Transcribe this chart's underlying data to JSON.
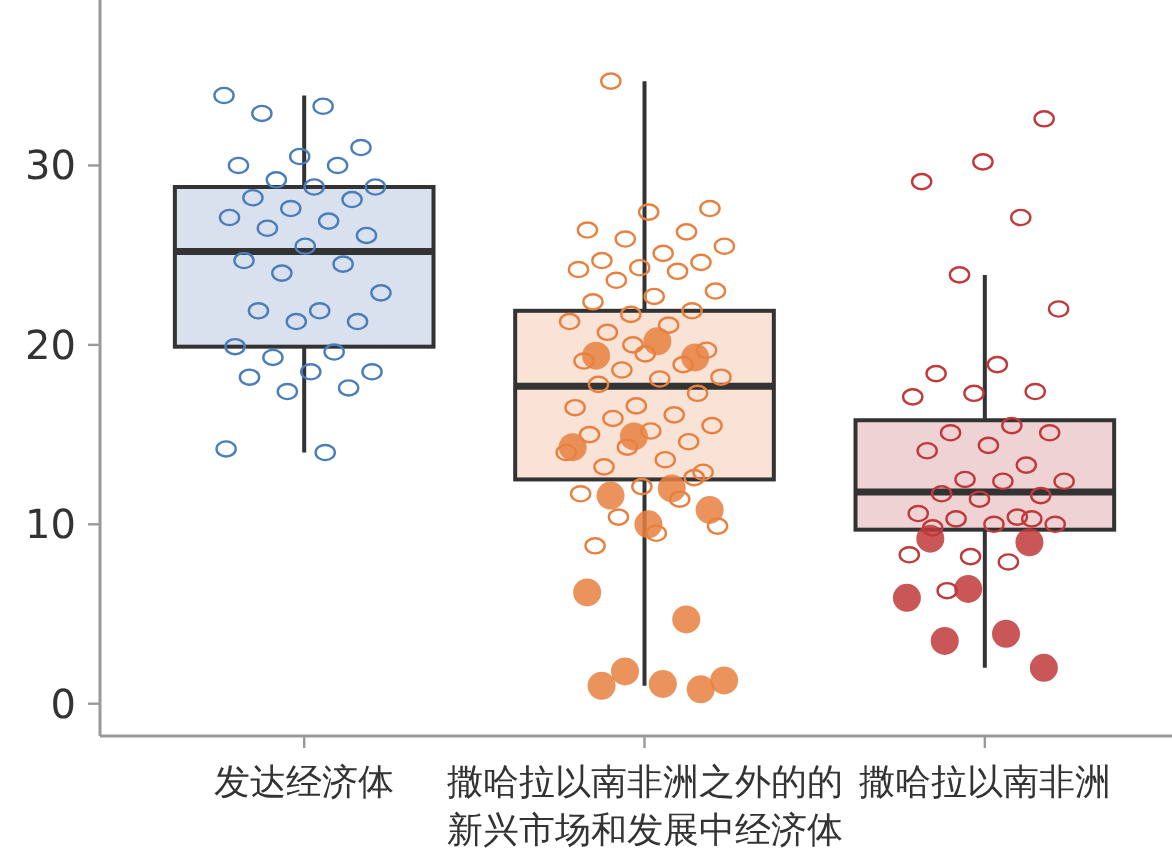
{
  "chart_data": {
    "type": "box",
    "categories": [
      "发达经济体",
      "撒哈拉以南非洲之外的的新兴市场和发展中经济体",
      "撒哈拉以南非洲"
    ],
    "boxes": [
      {
        "low": 14.0,
        "q1": 19.9,
        "median": 25.2,
        "q3": 28.8,
        "high": 33.9
      },
      {
        "low": 1.0,
        "q1": 12.5,
        "median": 17.7,
        "q3": 21.9,
        "high": 34.7
      },
      {
        "low": 2.0,
        "q1": 9.7,
        "median": 11.8,
        "q3": 15.8,
        "high": 23.9
      }
    ],
    "colors": [
      "#d9e1ee",
      "#f9e2d6",
      "#efd3d4"
    ],
    "ylim": [
      -1.8,
      39
    ],
    "yticks": [
      0,
      10,
      20,
      30
    ],
    "marker": "circle",
    "series": [
      {
        "type": "scatter",
        "color": "#4a7ebb",
        "x": [
          "发达经济体",
          "发达经济体",
          "发达经济体",
          "发达经济体",
          "发达经济体",
          "发达经济体",
          "发达经济体",
          "发达经济体",
          "发达经济体",
          "发达经济体",
          "发达经济体",
          "发达经济体",
          "发达经济体",
          "发达经济体",
          "发达经济体",
          "发达经济体",
          "发达经济体",
          "发达经济体",
          "发达经济体",
          "发达经济体",
          "发达经济体",
          "发达经济体",
          "发达经济体",
          "发达经济体",
          "发达经济体",
          "发达经济体",
          "发达经济体",
          "发达经济体",
          "发达经济体",
          "发达经济体",
          "发达经济体",
          "发达经济体",
          "发达经济体",
          "发达经济体",
          "发达经济体",
          "发达经济体"
        ],
        "values": [
          33.9,
          33.3,
          32.9,
          31.0,
          30.5,
          30.0,
          30.0,
          29.2,
          28.8,
          28.8,
          28.2,
          28.1,
          27.6,
          27.1,
          26.9,
          26.5,
          26.1,
          25.5,
          24.7,
          24.5,
          24.0,
          22.9,
          21.9,
          21.9,
          21.3,
          21.3,
          19.9,
          19.6,
          19.3,
          18.5,
          18.5,
          18.2,
          17.6,
          17.4,
          14.2,
          14.0
        ]
      },
      {
        "type": "scatter",
        "color": "#e8803f",
        "x": [
          "撒哈拉以南非洲之外的的新兴市场和发展中经济体",
          "撒哈拉以南非洲之外的的新兴市场和发展中经济体",
          "撒哈拉以南非洲之外的的新兴市场和发展中经济体",
          "撒哈拉以南非洲之外的的新兴市场和发展中经济体",
          "撒哈拉以南非洲之外的的新兴市场和发展中经济体",
          "撒哈拉以南非洲之外的的新兴市场和发展中经济体",
          "撒哈拉以南非洲之外的的新兴市场和发展中经济体",
          "撒哈拉以南非洲之外的的新兴市场和发展中经济体",
          "撒哈拉以南非洲之外的的新兴市场和发展中经济体",
          "撒哈拉以南非洲之外的的新兴市场和发展中经济体",
          "撒哈拉以南非洲之外的的新兴市场和发展中经济体",
          "撒哈拉以南非洲之外的的新兴市场和发展中经济体",
          "撒哈拉以南非洲之外的的新兴市场和发展中经济体",
          "撒哈拉以南非洲之外的的新兴市场和发展中经济体",
          "撒哈拉以南非洲之外的的新兴市场和发展中经济体",
          "撒哈拉以南非洲之外的的新兴市场和发展中经济体",
          "撒哈拉以南非洲之外的的新兴市场和发展中经济体",
          "撒哈拉以南非洲之外的的新兴市场和发展中经济体",
          "撒哈拉以南非洲之外的的新兴市场和发展中经济体",
          "撒哈拉以南非洲之外的的新兴市场和发展中经济体",
          "撒哈拉以南非洲之外的的新兴市场和发展中经济体",
          "撒哈拉以南非洲之外的的新兴市场和发展中经济体",
          "撒哈拉以南非洲之外的的新兴市场和发展中经济体",
          "撒哈拉以南非洲之外的的新兴市场和发展中经济体",
          "撒哈拉以南非洲之外的的新兴市场和发展中经济体",
          "撒哈拉以南非洲之外的的新兴市场和发展中经济体",
          "撒哈拉以南非洲之外的的新兴市场和发展中经济体",
          "撒哈拉以南非洲之外的的新兴市场和发展中经济体",
          "撒哈拉以南非洲之外的的新兴市场和发展中经济体",
          "撒哈拉以南非洲之外的的新兴市场和发展中经济体",
          "撒哈拉以南非洲之外的的新兴市场和发展中经济体",
          "撒哈拉以南非洲之外的的新兴市场和发展中经济体",
          "撒哈拉以南非洲之外的的新兴市场和发展中经济体",
          "撒哈拉以南非洲之外的的新兴市场和发展中经济体",
          "撒哈拉以南非洲之外的的新兴市场和发展中经济体",
          "撒哈拉以南非洲之外的的新兴市场和发展中经济体",
          "撒哈拉以南非洲之外的的新兴市场和发展中经济体",
          "撒哈拉以南非洲之外的的新兴市场和发展中经济体",
          "撒哈拉以南非洲之外的的新兴市场和发展中经济体",
          "撒哈拉以南非洲之外的的新兴市场和发展中经济体",
          "撒哈拉以南非洲之外的的新兴市场和发展中经济体",
          "撒哈拉以南非洲之外的的新兴市场和发展中经济体",
          "撒哈拉以南非洲之外的的新兴市场和发展中经济体",
          "撒哈拉以南非洲之外的的新兴市场和发展中经济体",
          "撒哈拉以南非洲之外的的新兴市场和发展中经济体",
          "撒哈拉以南非洲之外的的新兴市场和发展中经济体",
          "撒哈拉以南非洲之外的的新兴市场和发展中经济体",
          "撒哈拉以南非洲之外的的新兴市场和发展中经济体",
          "撒哈拉以南非洲之外的的新兴市场和发展中经济体",
          "撒哈拉以南非洲之外的的新兴市场和发展中经济体",
          "撒哈拉以南非洲之外的的新兴市场和发展中经济体",
          "撒哈拉以南非洲之外的的新兴市场和发展中经济体",
          "撒哈拉以南非洲之外的的新兴市场和发展中经济体"
        ],
        "values": [
          34.7,
          27.6,
          27.4,
          26.4,
          26.3,
          25.9,
          25.5,
          25.1,
          24.7,
          24.6,
          24.3,
          24.2,
          24.1,
          23.6,
          23.0,
          22.7,
          22.4,
          21.9,
          21.7,
          21.3,
          21.1,
          20.7,
          19.7,
          19.5,
          19.1,
          18.9,
          18.6,
          18.2,
          18.1,
          17.8,
          17.3,
          16.6,
          16.5,
          16.1,
          15.9,
          15.5,
          15.2,
          15.0,
          14.6,
          14.3,
          14.0,
          13.6,
          13.2,
          12.9,
          12.1,
          11.7,
          11.4,
          10.4,
          9.9,
          9.5,
          8.8,
          12.6,
          20.0
        ]
      },
      {
        "type": "bubble",
        "color": "#e8803f",
        "x": [
          "撒哈拉以南非洲之外的的新兴市场和发展中经济体",
          "撒哈拉以南非洲之外的的新兴市场和发展中经济体",
          "撒哈拉以南非洲之外的的新兴市场和发展中经济体",
          "撒哈拉以南非洲之外的的新兴市场和发展中经济体",
          "撒哈拉以南非洲之外的的新兴市场和发展中经济体",
          "撒哈拉以南非洲之外的的新兴市场和发展中经济体",
          "撒哈拉以南非洲之外的的新兴市场和发展中经济体",
          "撒哈拉以南非洲之外的的新兴市场和发展中经济体",
          "撒哈拉以南非洲之外的的新兴市场和发展中经济体",
          "撒哈拉以南非洲之外的的新兴市场和发展中经济体",
          "撒哈拉以南非洲之外的的新兴市场和发展中经济体",
          "撒哈拉以南非洲之外的的新兴市场和发展中经济体",
          "撒哈拉以南非洲之外的的新兴市场和发展中经济体",
          "撒哈拉以南非洲之外的的新兴市场和发展中经济体",
          "撒哈拉以南非洲之外的的新兴市场和发展中经济体",
          "撒哈拉以南非洲之外的的新兴市场和发展中经济体"
        ],
        "values": [
          20.2,
          19.4,
          19.3,
          14.9,
          14.3,
          12.0,
          11.6,
          10.8,
          10.0,
          6.2,
          4.7,
          1.8,
          1.3,
          1.1,
          1.0,
          0.8
        ],
        "sizes": [
          1,
          1,
          1,
          1,
          1,
          1,
          1,
          1,
          1,
          1,
          1,
          1,
          1,
          1,
          1,
          1
        ]
      },
      {
        "type": "scatter",
        "color": "#c0393b",
        "x": [
          "撒哈拉以南非洲",
          "撒哈拉以南非洲",
          "撒哈拉以南非洲",
          "撒哈拉以南非洲",
          "撒哈拉以南非洲",
          "撒哈拉以南非洲",
          "撒哈拉以南非洲",
          "撒哈拉以南非洲",
          "撒哈拉以南非洲",
          "撒哈拉以南非洲",
          "撒哈拉以南非洲",
          "撒哈拉以南非洲",
          "撒哈拉以南非洲",
          "撒哈拉以南非洲",
          "撒哈拉以南非洲",
          "撒哈拉以南非洲",
          "撒哈拉以南非洲",
          "撒哈拉以南非洲",
          "撒哈拉以南非洲",
          "撒哈拉以南非洲",
          "撒哈拉以南非洲",
          "撒哈拉以南非洲",
          "撒哈拉以南非洲",
          "撒哈拉以南非洲",
          "撒哈拉以南非洲",
          "撒哈拉以南非洲",
          "撒哈拉以南非洲",
          "撒哈拉以南非洲",
          "撒哈拉以南非洲",
          "撒哈拉以南非洲",
          "撒哈拉以南非洲",
          "撒哈拉以南非洲",
          "撒哈拉以南非洲",
          "撒哈拉以南非洲"
        ],
        "values": [
          32.6,
          30.2,
          29.1,
          27.1,
          23.9,
          22.0,
          18.9,
          18.4,
          17.4,
          17.3,
          17.1,
          15.5,
          15.1,
          15.1,
          14.4,
          14.1,
          13.3,
          12.5,
          12.4,
          12.4,
          11.7,
          11.6,
          11.4,
          10.6,
          10.4,
          10.3,
          10.0,
          10.0,
          9.8,
          10.3,
          8.2,
          8.3,
          7.9,
          6.3
        ]
      },
      {
        "type": "bubble",
        "color": "#c0393b",
        "x": [
          "撒哈拉以南非洲",
          "撒哈拉以南非洲",
          "撒哈拉以南非洲",
          "撒哈拉以南非洲",
          "撒哈拉以南非洲",
          "撒哈拉以南非洲",
          "撒哈拉以南非洲"
        ],
        "values": [
          9.2,
          9.0,
          6.4,
          5.9,
          3.9,
          3.5,
          2.0
        ],
        "sizes": [
          1,
          1,
          1,
          1,
          1,
          1,
          1
        ]
      }
    ]
  }
}
